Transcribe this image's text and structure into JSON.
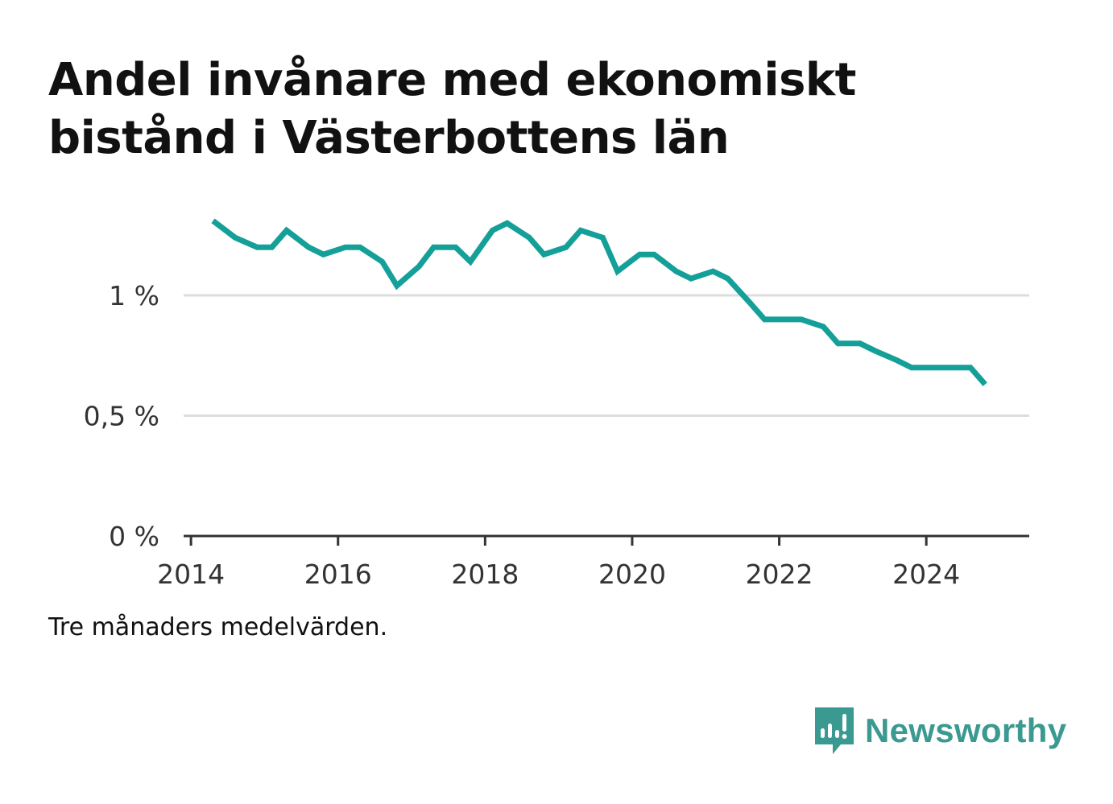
{
  "title": "Andel invånare med ekonomiskt bistånd i Västerbottens län",
  "note": "Tre månaders medelvärden.",
  "brand": {
    "name": "Newsworthy",
    "icon": "newsworthy-logo-icon",
    "color": "#3a9990"
  },
  "colors": {
    "line": "#14a098",
    "grid": "#dddddd",
    "axis": "#333333"
  },
  "chart_data": {
    "type": "line",
    "title": "Andel invånare med ekonomiskt bistånd i Västerbottens län",
    "xlabel": "",
    "ylabel": "",
    "xlim": [
      2013.9,
      2025.4
    ],
    "ylim": [
      0,
      1.0
    ],
    "x_ticks": [
      {
        "value": 2014,
        "label": "2014"
      },
      {
        "value": 2016,
        "label": "2016"
      },
      {
        "value": 2018,
        "label": "2018"
      },
      {
        "value": 2020,
        "label": "2020"
      },
      {
        "value": 2022,
        "label": "2022"
      },
      {
        "value": 2024,
        "label": "2024"
      }
    ],
    "y_ticks": [
      {
        "value": 0,
        "label": "0 %"
      },
      {
        "value": 0.5,
        "label": "0,5 %"
      },
      {
        "value": 1.0,
        "label": "1 %"
      }
    ],
    "grid": true,
    "series": [
      {
        "color": "#14a098",
        "points": [
          [
            2014.3,
            1.31
          ],
          [
            2014.6,
            1.24
          ],
          [
            2014.9,
            1.2
          ],
          [
            2015.1,
            1.2
          ],
          [
            2015.3,
            1.27
          ],
          [
            2015.6,
            1.2
          ],
          [
            2015.8,
            1.17
          ],
          [
            2016.1,
            1.2
          ],
          [
            2016.3,
            1.2
          ],
          [
            2016.6,
            1.14
          ],
          [
            2016.8,
            1.04
          ],
          [
            2017.1,
            1.12
          ],
          [
            2017.3,
            1.2
          ],
          [
            2017.6,
            1.2
          ],
          [
            2017.8,
            1.14
          ],
          [
            2018.1,
            1.27
          ],
          [
            2018.3,
            1.3
          ],
          [
            2018.6,
            1.24
          ],
          [
            2018.8,
            1.17
          ],
          [
            2019.1,
            1.2
          ],
          [
            2019.3,
            1.27
          ],
          [
            2019.6,
            1.24
          ],
          [
            2019.8,
            1.1
          ],
          [
            2020.1,
            1.17
          ],
          [
            2020.3,
            1.17
          ],
          [
            2020.6,
            1.1
          ],
          [
            2020.8,
            1.07
          ],
          [
            2021.1,
            1.1
          ],
          [
            2021.3,
            1.07
          ],
          [
            2021.6,
            0.97
          ],
          [
            2021.8,
            0.9
          ],
          [
            2022.1,
            0.9
          ],
          [
            2022.3,
            0.9
          ],
          [
            2022.6,
            0.87
          ],
          [
            2022.8,
            0.8
          ],
          [
            2023.1,
            0.8
          ],
          [
            2023.3,
            0.77
          ],
          [
            2023.6,
            0.73
          ],
          [
            2023.8,
            0.7
          ],
          [
            2024.1,
            0.7
          ],
          [
            2024.3,
            0.7
          ],
          [
            2024.6,
            0.7
          ],
          [
            2024.8,
            0.63
          ]
        ]
      }
    ]
  }
}
